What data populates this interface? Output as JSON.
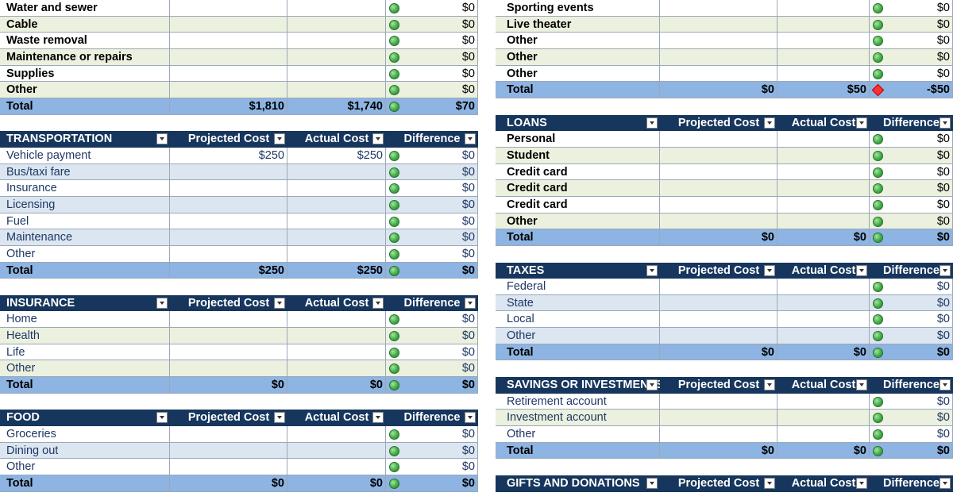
{
  "columns": {
    "projected": "Projected Cost",
    "actual": "Actual Cost",
    "difference": "Difference"
  },
  "left": {
    "housing_tail": {
      "rows": [
        {
          "label": "Water and sewer",
          "projected": "",
          "actual": "",
          "indicator": "green",
          "difference": "$0"
        },
        {
          "label": "Cable",
          "projected": "",
          "actual": "",
          "indicator": "green",
          "difference": "$0"
        },
        {
          "label": "Waste removal",
          "projected": "",
          "actual": "",
          "indicator": "green",
          "difference": "$0"
        },
        {
          "label": "Maintenance or repairs",
          "projected": "",
          "actual": "",
          "indicator": "green",
          "difference": "$0"
        },
        {
          "label": "Supplies",
          "projected": "",
          "actual": "",
          "indicator": "green",
          "difference": "$0"
        },
        {
          "label": "Other",
          "projected": "",
          "actual": "",
          "indicator": "green",
          "difference": "$0"
        }
      ],
      "total": {
        "label": "Total",
        "projected": "$1,810",
        "actual": "$1,740",
        "indicator": "green",
        "difference": "$70"
      }
    },
    "transportation": {
      "title": "TRANSPORTATION",
      "rows": [
        {
          "label": "Vehicle payment",
          "projected": "$250",
          "actual": "$250",
          "indicator": "green",
          "difference": "$0"
        },
        {
          "label": "Bus/taxi fare",
          "projected": "",
          "actual": "",
          "indicator": "green",
          "difference": "$0"
        },
        {
          "label": "Insurance",
          "projected": "",
          "actual": "",
          "indicator": "green",
          "difference": "$0"
        },
        {
          "label": "Licensing",
          "projected": "",
          "actual": "",
          "indicator": "green",
          "difference": "$0"
        },
        {
          "label": "Fuel",
          "projected": "",
          "actual": "",
          "indicator": "green",
          "difference": "$0"
        },
        {
          "label": "Maintenance",
          "projected": "",
          "actual": "",
          "indicator": "green",
          "difference": "$0"
        },
        {
          "label": "Other",
          "projected": "",
          "actual": "",
          "indicator": "green",
          "difference": "$0"
        }
      ],
      "total": {
        "label": "Total",
        "projected": "$250",
        "actual": "$250",
        "indicator": "green",
        "difference": "$0"
      }
    },
    "insurance": {
      "title": "INSURANCE",
      "rows": [
        {
          "label": "Home",
          "projected": "",
          "actual": "",
          "indicator": "green",
          "difference": "$0"
        },
        {
          "label": "Health",
          "projected": "",
          "actual": "",
          "indicator": "green",
          "difference": "$0"
        },
        {
          "label": "Life",
          "projected": "",
          "actual": "",
          "indicator": "green",
          "difference": "$0"
        },
        {
          "label": "Other",
          "projected": "",
          "actual": "",
          "indicator": "green",
          "difference": "$0"
        }
      ],
      "total": {
        "label": "Total",
        "projected": "$0",
        "actual": "$0",
        "indicator": "green",
        "difference": "$0"
      }
    },
    "food": {
      "title": "FOOD",
      "rows": [
        {
          "label": "Groceries",
          "projected": "",
          "actual": "",
          "indicator": "green",
          "difference": "$0"
        },
        {
          "label": "Dining out",
          "projected": "",
          "actual": "",
          "indicator": "green",
          "difference": "$0"
        },
        {
          "label": "Other",
          "projected": "",
          "actual": "",
          "indicator": "green",
          "difference": "$0"
        }
      ],
      "total": {
        "label": "Total",
        "projected": "$0",
        "actual": "$0",
        "indicator": "green",
        "difference": "$0"
      }
    }
  },
  "right": {
    "entertainment_tail": {
      "rows": [
        {
          "label": "Sporting events",
          "projected": "",
          "actual": "",
          "indicator": "green",
          "difference": "$0"
        },
        {
          "label": "Live theater",
          "projected": "",
          "actual": "",
          "indicator": "green",
          "difference": "$0"
        },
        {
          "label": "Other",
          "projected": "",
          "actual": "",
          "indicator": "green",
          "difference": "$0"
        },
        {
          "label": "Other",
          "projected": "",
          "actual": "",
          "indicator": "green",
          "difference": "$0"
        },
        {
          "label": "Other",
          "projected": "",
          "actual": "",
          "indicator": "green",
          "difference": "$0"
        }
      ],
      "total": {
        "label": "Total",
        "projected": "$0",
        "actual": "$50",
        "indicator": "red",
        "difference": "-$50"
      }
    },
    "loans": {
      "title": "LOANS",
      "actual_header": "Actual Cost",
      "rows": [
        {
          "label": "Personal",
          "projected": "",
          "actual": "",
          "indicator": "green",
          "difference": "$0"
        },
        {
          "label": "Student",
          "projected": "",
          "actual": "",
          "indicator": "green",
          "difference": "$0"
        },
        {
          "label": "Credit card",
          "projected": "",
          "actual": "",
          "indicator": "green",
          "difference": "$0"
        },
        {
          "label": "Credit card",
          "projected": "",
          "actual": "",
          "indicator": "green",
          "difference": "$0"
        },
        {
          "label": "Credit card",
          "projected": "",
          "actual": "",
          "indicator": "green",
          "difference": "$0"
        },
        {
          "label": "Other",
          "projected": "",
          "actual": "",
          "indicator": "green",
          "difference": "$0"
        }
      ],
      "total": {
        "label": "Total",
        "projected": "$0",
        "actual": "$0",
        "indicator": "green",
        "difference": "$0"
      }
    },
    "taxes": {
      "title": "TAXES",
      "rows": [
        {
          "label": "Federal",
          "projected": "",
          "actual": "",
          "indicator": "green",
          "difference": "$0"
        },
        {
          "label": "State",
          "projected": "",
          "actual": "",
          "indicator": "green",
          "difference": "$0"
        },
        {
          "label": "Local",
          "projected": "",
          "actual": "",
          "indicator": "green",
          "difference": "$0"
        },
        {
          "label": "Other",
          "projected": "",
          "actual": "",
          "indicator": "green",
          "difference": "$0"
        }
      ],
      "total": {
        "label": "Total",
        "projected": "$0",
        "actual": "$0",
        "indicator": "green",
        "difference": "$0"
      }
    },
    "savings": {
      "title": "SAVINGS OR INVESTMENTS",
      "rows": [
        {
          "label": "Retirement account",
          "projected": "",
          "actual": "",
          "indicator": "green",
          "difference": "$0"
        },
        {
          "label": "Investment account",
          "projected": "",
          "actual": "",
          "indicator": "green",
          "difference": "$0"
        },
        {
          "label": "Other",
          "projected": "",
          "actual": "",
          "indicator": "green",
          "difference": "$0"
        }
      ],
      "total": {
        "label": "Total",
        "projected": "$0",
        "actual": "$0",
        "indicator": "green",
        "difference": "$0"
      }
    },
    "gifts": {
      "title": "GIFTS AND DONATIONS",
      "rows": []
    }
  }
}
